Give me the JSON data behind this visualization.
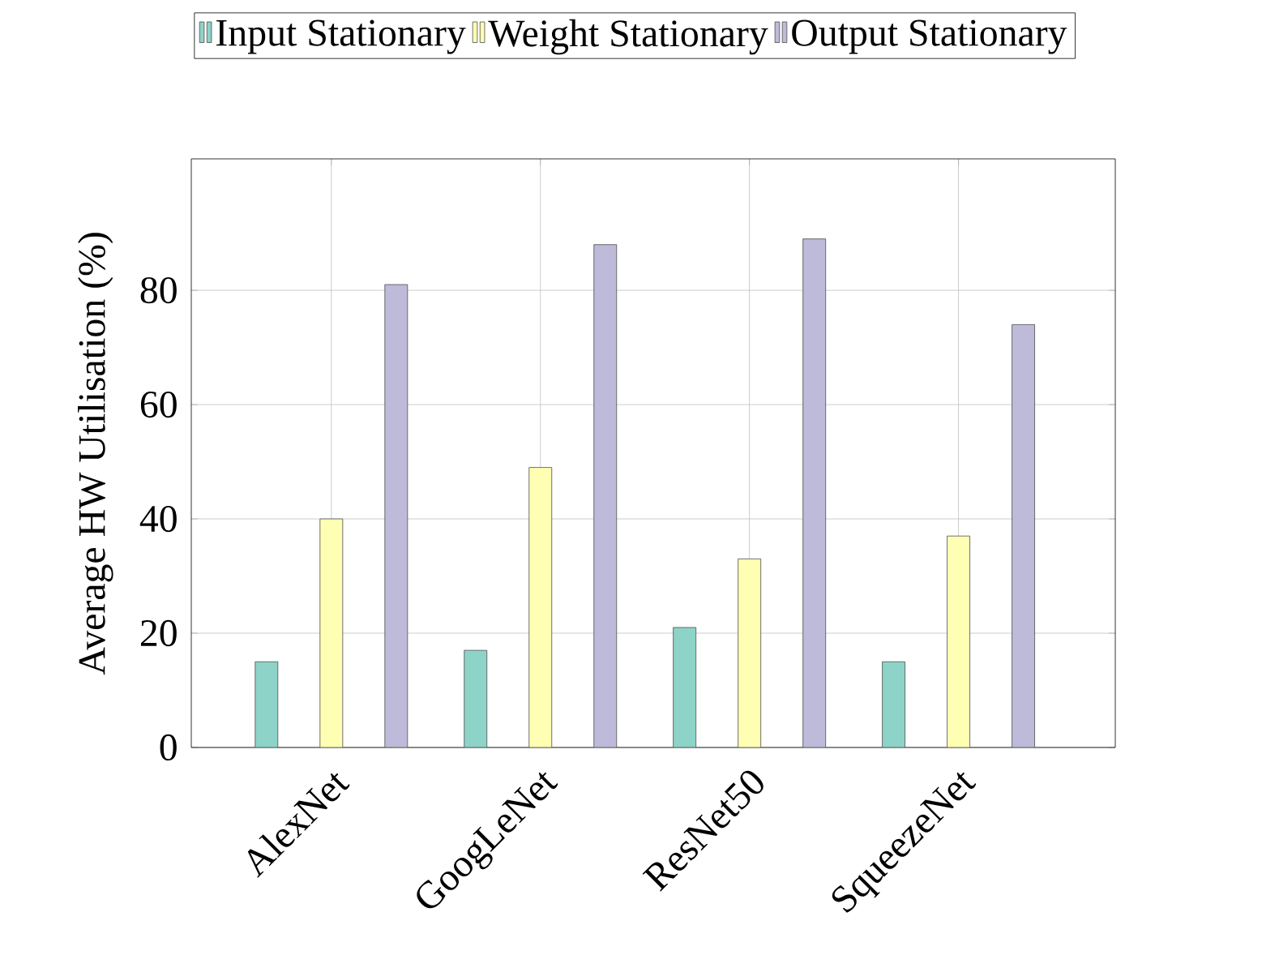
{
  "chart_data": {
    "type": "bar",
    "ylabel": "Average HW Utilisation (%)",
    "categories": [
      "AlexNet",
      "GoogLeNet",
      "ResNet50",
      "SqueezeNet"
    ],
    "series": [
      {
        "name": "Input Stationary",
        "color": "#8dd3c7",
        "values": [
          15,
          17,
          21,
          15
        ]
      },
      {
        "name": "Weight Stationary",
        "color": "#ffffb3",
        "values": [
          40,
          49,
          33,
          37
        ]
      },
      {
        "name": "Output Stationary",
        "color": "#bebada",
        "values": [
          81,
          88,
          89,
          74
        ]
      }
    ],
    "ylim": [
      0,
      103
    ],
    "yticks": [
      0,
      20,
      40,
      60,
      80
    ],
    "grid": true,
    "legend": "top"
  }
}
